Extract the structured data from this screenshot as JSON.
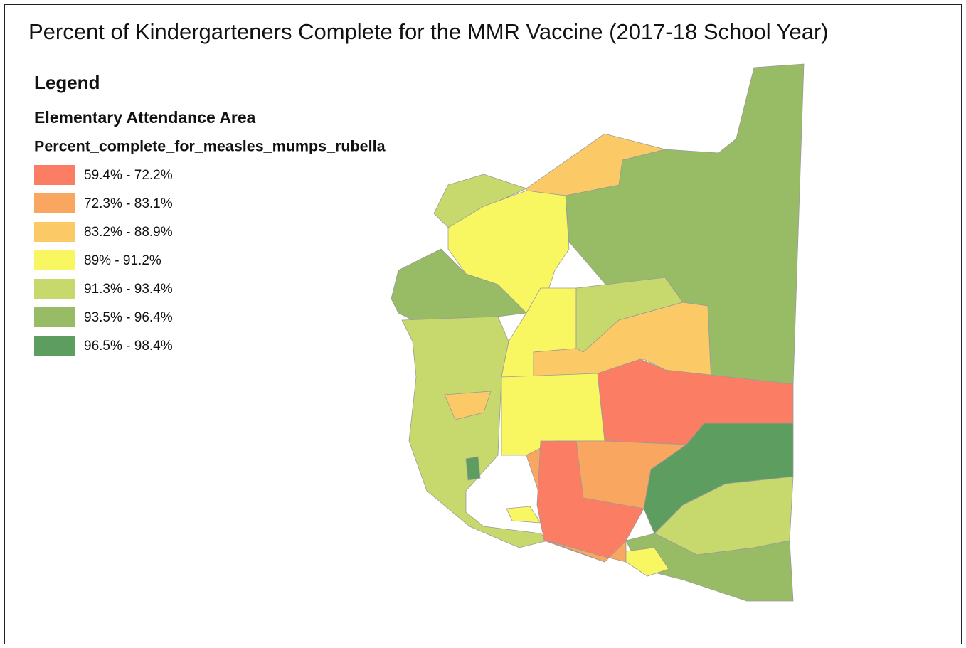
{
  "title": "Percent of Kindergarteners Complete for the MMR Vaccine (2017-18 School Year)",
  "legend": {
    "heading": "Legend",
    "layer": "Elementary Attendance Area",
    "field": "Percent_complete_for_measles_mumps_rubella",
    "classes": [
      {
        "label": "59.4% - 72.2%",
        "color": "#fb7d63"
      },
      {
        "label": "72.3% - 83.1%",
        "color": "#f9a760"
      },
      {
        "label": "83.2% - 88.9%",
        "color": "#fbca66"
      },
      {
        "label": "89% - 91.2%",
        "color": "#f8f762"
      },
      {
        "label": "91.3% - 93.4%",
        "color": "#c7d86c"
      },
      {
        "label": "93.5% - 96.4%",
        "color": "#98bb66"
      },
      {
        "label": "96.5% - 98.4%",
        "color": "#5e9d60"
      }
    ]
  }
}
